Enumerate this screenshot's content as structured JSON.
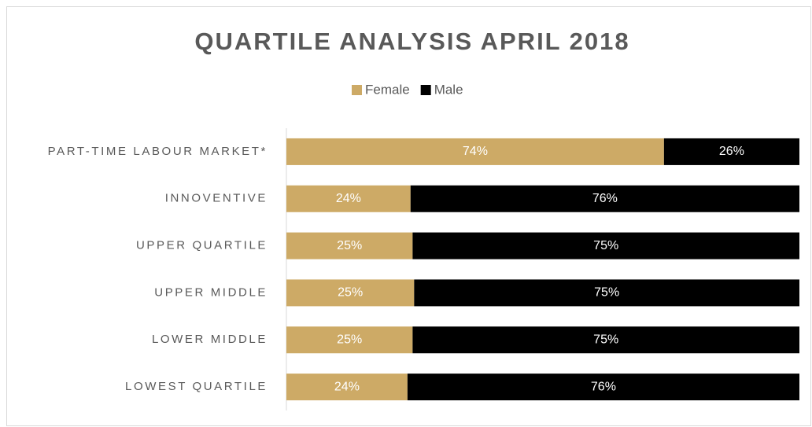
{
  "chart_data": {
    "type": "bar",
    "orientation": "horizontal",
    "stacked": true,
    "title": "QUARTILE ANALYSIS APRIL 2018",
    "categories": [
      "PART-TIME LABOUR MARKET*",
      "INNOVENTIVE",
      "UPPER QUARTILE",
      "UPPER MIDDLE",
      "LOWER MIDDLE",
      "LOWEST QUARTILE"
    ],
    "series": [
      {
        "name": "Female",
        "color": "#cdaa66",
        "values": [
          73.6,
          24.2,
          24.6,
          24.9,
          24.6,
          23.6
        ],
        "value_labels": [
          "74%",
          "24%",
          "25%",
          "25%",
          "25%",
          "24%"
        ]
      },
      {
        "name": "Male",
        "color": "#000000",
        "values": [
          26.4,
          75.8,
          75.4,
          75.1,
          75.4,
          76.4
        ],
        "value_labels": [
          "26%",
          "76%",
          "75%",
          "75%",
          "75%",
          "76%"
        ]
      }
    ],
    "xlim": [
      0,
      100
    ],
    "legend": "top"
  }
}
